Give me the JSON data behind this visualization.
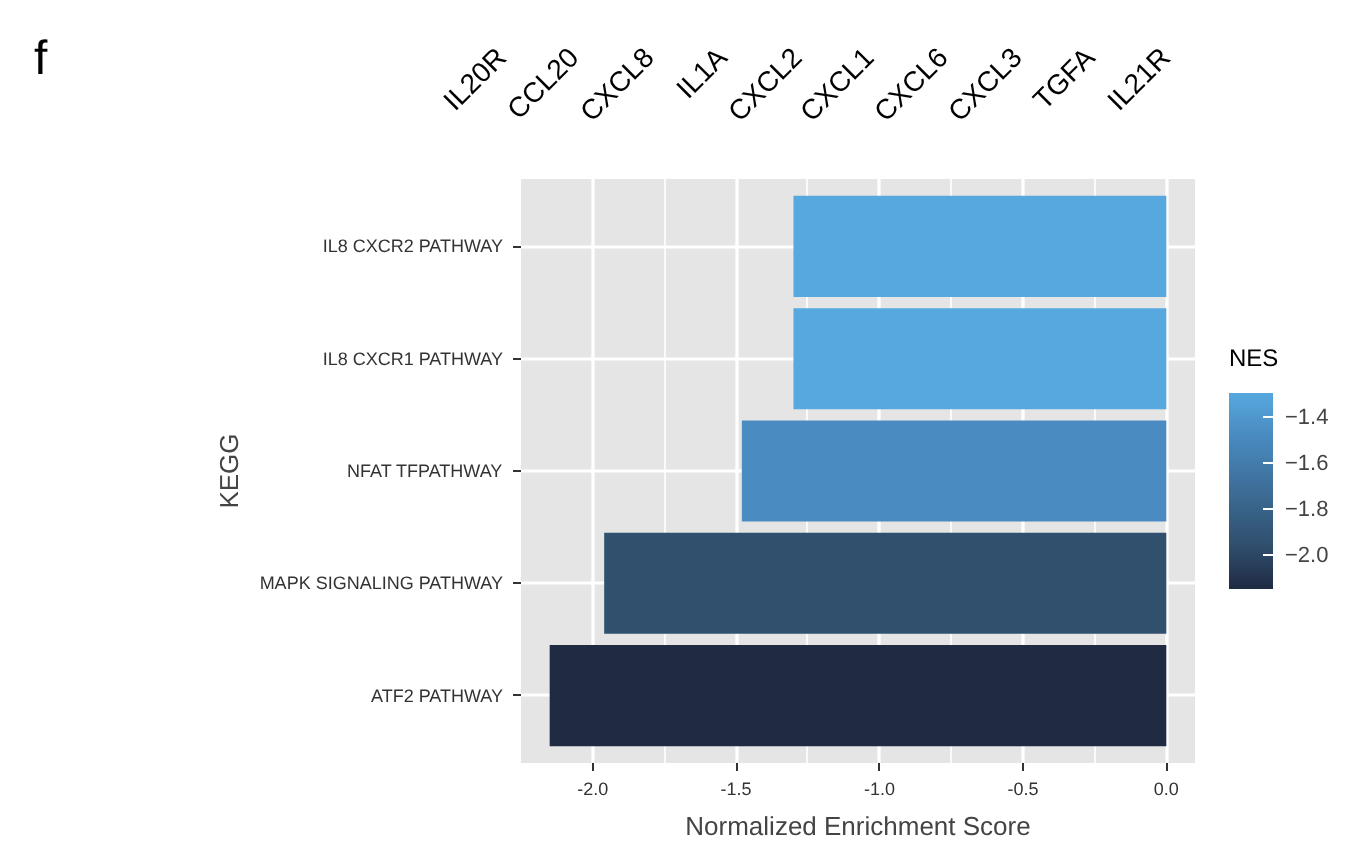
{
  "chart_data": {
    "type": "bar",
    "orientation": "horizontal",
    "categories": [
      "IL8 CXCR2 PATHWAY",
      "IL8 CXCR1 PATHWAY",
      "NFAT TFPATHWAY",
      "MAPK SIGNALING PATHWAY",
      "ATF2 PATHWAY"
    ],
    "values": [
      -1.3,
      -1.3,
      -1.48,
      -1.96,
      -2.15
    ],
    "colors": [
      "#56a8df",
      "#56a8df",
      "#4a8cc2",
      "#30506e",
      "#202b43"
    ],
    "xlabel": "Normalized Enrichment Score",
    "ylabel": "KEGG",
    "clabel": "NES",
    "xlim": [
      -2.25,
      0.1
    ],
    "xticks": [
      {
        "value": -2,
        "label": "-2.0"
      },
      -1.5,
      {
        "value": -1,
        "label": "-1.0"
      },
      -0.5,
      {
        "value": 0,
        "label": "0.0"
      }
    ],
    "clim": [
      -2.15,
      -1.3
    ],
    "cticks": [
      {
        "value": -1.4,
        "label": "−1.4"
      },
      {
        "value": -1.6,
        "label": "−1.6"
      },
      {
        "value": -1.8,
        "label": "−1.8"
      },
      {
        "value": -2,
        "label": "−2.0"
      }
    ],
    "grid": true,
    "annotations": [
      "f",
      "IL20R",
      "CCL20",
      "CXCL8",
      "IL1A",
      "CXCL2",
      "CXCL1",
      "CXCL6",
      "CXCL3",
      "TGFA",
      "IL21R"
    ]
  }
}
